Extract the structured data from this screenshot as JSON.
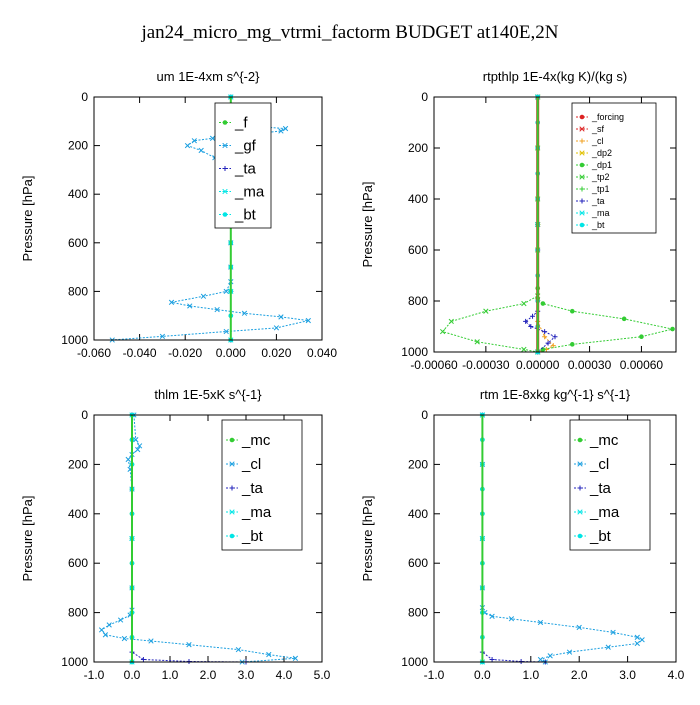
{
  "title": "jan24_micro_mg_vtrmi_factorm  BUDGET at140E,2N",
  "colors": {
    "green": "#33cc33",
    "blue": "#1a9fe0",
    "navy": "#2222bb",
    "cyan": "#00e5e5",
    "red": "#dd2222",
    "orange": "#f0a020",
    "yellow": "#e0c000",
    "frame": "#000000"
  },
  "chart_data": [
    {
      "type": "line",
      "title": "um  1E-4xm s^{-2}",
      "ylabel": "Pressure [hPa]",
      "xlim": [
        -0.06,
        0.04
      ],
      "ylim": [
        1000,
        0
      ],
      "xticks": [
        "-0.060",
        "-0.040",
        "-0.020",
        "0.000",
        "0.020",
        "0.040"
      ],
      "xtick_values": [
        -0.06,
        -0.04,
        -0.02,
        0,
        0.02,
        0.04
      ],
      "yticks": [
        "0",
        "200",
        "400",
        "600",
        "800",
        "1000"
      ],
      "legend": [
        "_f",
        "_gf",
        "_ta",
        "_ma",
        "_bt"
      ],
      "legend_placement": "top-right",
      "series": [
        {
          "name": "_f",
          "color": "green",
          "x": [
            0,
            0,
            0,
            0,
            0,
            0,
            0,
            0,
            0,
            0,
            0
          ],
          "y": [
            0,
            100,
            200,
            300,
            400,
            500,
            600,
            700,
            800,
            900,
            1000
          ]
        },
        {
          "name": "_gf",
          "color": "blue",
          "x": [
            0,
            0,
            0.002,
            0.01,
            0.024,
            0.022,
            0.012,
            0.004,
            -0.008,
            -0.016,
            -0.019,
            -0.013,
            -0.007,
            -0.004,
            -0.003,
            -0.001,
            0,
            0.001,
            0,
            0,
            0,
            0,
            -0.002,
            -0.012,
            -0.026,
            -0.018,
            -0.006,
            0.006,
            0.022,
            0.034,
            0.02,
            -0.002,
            -0.03,
            -0.052
          ],
          "y": [
            0,
            80,
            110,
            120,
            130,
            140,
            150,
            160,
            170,
            180,
            200,
            220,
            250,
            280,
            320,
            360,
            400,
            450,
            500,
            600,
            700,
            760,
            800,
            820,
            845,
            860,
            875,
            890,
            905,
            920,
            950,
            965,
            985,
            1000
          ]
        },
        {
          "name": "_ta",
          "color": "navy",
          "x": [
            0,
            0,
            0,
            0
          ],
          "y": [
            0,
            400,
            800,
            1000
          ]
        },
        {
          "name": "_ma",
          "color": "cyan",
          "x": [
            0,
            0,
            0,
            0
          ],
          "y": [
            0,
            400,
            800,
            1000
          ]
        },
        {
          "name": "_bt",
          "color": "cyan",
          "x": [
            0,
            0,
            0,
            0,
            0,
            0,
            0,
            0,
            0,
            0,
            0
          ],
          "y": [
            0,
            100,
            200,
            300,
            400,
            500,
            600,
            700,
            800,
            900,
            1000
          ]
        }
      ]
    },
    {
      "type": "line",
      "title": "rtpthlp  1E-4x(kg K)/(kg s)",
      "ylabel": "Pressure [hPa]",
      "xlim": [
        -0.0006,
        0.0008
      ],
      "ylim": [
        1000,
        0
      ],
      "xticks": [
        "-0.00060",
        "-0.00030",
        "0.00000",
        "0.00030",
        "0.00060"
      ],
      "xtick_values": [
        -0.0006,
        -0.0003,
        0,
        0.0003,
        0.0006
      ],
      "yticks": [
        "0",
        "200",
        "400",
        "600",
        "800",
        "1000"
      ],
      "legend": [
        "_forcing",
        "_sf",
        "_cl",
        "_dp2",
        "_dp1",
        "_tp2",
        "_tp1",
        "_ta",
        "_ma",
        "_bt"
      ],
      "legend_placement": "top-right",
      "series": [
        {
          "name": "_forcing",
          "color": "red",
          "x": [
            0,
            0,
            0,
            0,
            0,
            0,
            0,
            0,
            0,
            0,
            0
          ],
          "y": [
            0,
            100,
            200,
            300,
            400,
            500,
            600,
            700,
            800,
            900,
            1000
          ]
        },
        {
          "name": "_sf",
          "color": "red",
          "x": [
            0,
            0,
            0
          ],
          "y": [
            0,
            500,
            1000
          ]
        },
        {
          "name": "_cl",
          "color": "orange",
          "x": [
            0,
            0,
            0,
            4e-05,
            9e-05,
            5e-05,
            0
          ],
          "y": [
            0,
            500,
            880,
            940,
            975,
            990,
            1000
          ]
        },
        {
          "name": "_dp2",
          "color": "yellow",
          "x": [
            0,
            0,
            0
          ],
          "y": [
            0,
            500,
            1000
          ]
        },
        {
          "name": "_dp1",
          "color": "green",
          "x": [
            0,
            0,
            0,
            0,
            0,
            0,
            3e-05,
            0.0002,
            0.0005,
            0.00078,
            0.0006,
            0.0002,
            3e-05,
            0
          ],
          "y": [
            0,
            200,
            400,
            600,
            750,
            790,
            810,
            840,
            870,
            910,
            940,
            970,
            990,
            1000
          ]
        },
        {
          "name": "_tp2",
          "color": "green",
          "x": [
            0,
            0,
            0,
            0,
            0,
            -8e-05,
            -0.0003,
            -0.0005,
            -0.00055,
            -0.00035,
            -8e-05,
            0
          ],
          "y": [
            0,
            200,
            400,
            600,
            780,
            810,
            840,
            880,
            920,
            960,
            990,
            1000
          ]
        },
        {
          "name": "_tp1",
          "color": "green",
          "x": [
            0,
            0,
            0
          ],
          "y": [
            0,
            500,
            1000
          ]
        },
        {
          "name": "_ta",
          "color": "navy",
          "x": [
            0,
            0,
            0,
            -3e-05,
            -7e-05,
            -4e-05,
            4e-05,
            0.0001,
            6e-05,
            0
          ],
          "y": [
            0,
            600,
            840,
            860,
            880,
            900,
            920,
            940,
            965,
            1000
          ]
        },
        {
          "name": "_ma",
          "color": "cyan",
          "x": [
            0,
            0,
            0
          ],
          "y": [
            0,
            500,
            1000
          ]
        },
        {
          "name": "_bt",
          "color": "cyan",
          "x": [
            0,
            0,
            0,
            0,
            0,
            0,
            0,
            0,
            0,
            0,
            0
          ],
          "y": [
            0,
            100,
            200,
            300,
            400,
            500,
            600,
            700,
            800,
            900,
            1000
          ]
        }
      ]
    },
    {
      "type": "line",
      "title": "thlm  1E-5xK s^{-1}",
      "ylabel": "Pressure [hPa]",
      "xlim": [
        -1.0,
        5.0
      ],
      "ylim": [
        1000,
        0
      ],
      "xticks": [
        "-1.0",
        "0.0",
        "1.0",
        "2.0",
        "3.0",
        "4.0",
        "5.0"
      ],
      "xtick_values": [
        -1,
        0,
        1,
        2,
        3,
        4,
        5
      ],
      "yticks": [
        "0",
        "200",
        "400",
        "600",
        "800",
        "1000"
      ],
      "legend": [
        "_mc",
        "_cl",
        "_ta",
        "_ma",
        "_bt"
      ],
      "legend_placement": "top-right",
      "series": [
        {
          "name": "_mc",
          "color": "green",
          "x": [
            0,
            0,
            0,
            0,
            0,
            0,
            0,
            0,
            0,
            0,
            0
          ],
          "y": [
            0,
            100,
            200,
            300,
            400,
            500,
            600,
            700,
            800,
            900,
            1000
          ]
        },
        {
          "name": "_cl",
          "color": "blue",
          "x": [
            0.05,
            0.1,
            0.2,
            0.15,
            0.0,
            -0.1,
            -0.05,
            0,
            0,
            0,
            0,
            -0.05,
            -0.3,
            -0.6,
            -0.8,
            -0.7,
            -0.2,
            0.5,
            1.5,
            2.8,
            3.6,
            4.3,
            2.9
          ],
          "y": [
            0,
            100,
            125,
            140,
            160,
            180,
            220,
            300,
            500,
            700,
            790,
            810,
            830,
            850,
            870,
            890,
            905,
            915,
            930,
            950,
            970,
            985,
            1000
          ]
        },
        {
          "name": "_ta",
          "color": "navy",
          "x": [
            0,
            0,
            0.3,
            1.5,
            3.0
          ],
          "y": [
            0,
            960,
            990,
            998,
            1000
          ]
        },
        {
          "name": "_ma",
          "color": "cyan",
          "x": [
            0,
            0,
            0
          ],
          "y": [
            0,
            500,
            1000
          ]
        },
        {
          "name": "_bt",
          "color": "cyan",
          "x": [
            0,
            0,
            0,
            0,
            0,
            0,
            0,
            0,
            0,
            0,
            0
          ],
          "y": [
            0,
            100,
            200,
            300,
            400,
            500,
            600,
            700,
            800,
            900,
            1000
          ]
        }
      ]
    },
    {
      "type": "line",
      "title": "rtm  1E-8xkg kg^{-1} s^{-1}",
      "ylabel": "Pressure [hPa]",
      "xlim": [
        -1.0,
        4.0
      ],
      "ylim": [
        1000,
        0
      ],
      "xticks": [
        "-1.0",
        "0.0",
        "1.0",
        "2.0",
        "3.0",
        "4.0"
      ],
      "xtick_values": [
        -1,
        0,
        1,
        2,
        3,
        4
      ],
      "yticks": [
        "0",
        "200",
        "400",
        "600",
        "800",
        "1000"
      ],
      "legend": [
        "_mc",
        "_cl",
        "_ta",
        "_ma",
        "_bt"
      ],
      "legend_placement": "top-right",
      "series": [
        {
          "name": "_mc",
          "color": "green",
          "x": [
            0,
            0,
            0,
            0,
            0,
            0,
            0,
            0,
            0,
            0,
            0
          ],
          "y": [
            0,
            100,
            200,
            300,
            400,
            500,
            600,
            700,
            800,
            900,
            1000
          ]
        },
        {
          "name": "_cl",
          "color": "blue",
          "x": [
            0,
            0,
            0,
            0,
            0,
            0.05,
            0.2,
            0.6,
            1.2,
            2.0,
            2.7,
            3.2,
            3.3,
            3.2,
            2.6,
            1.8,
            1.4,
            1.2,
            1.3
          ],
          "y": [
            0,
            200,
            500,
            700,
            780,
            800,
            815,
            825,
            840,
            860,
            880,
            900,
            910,
            925,
            940,
            960,
            975,
            990,
            1000
          ]
        },
        {
          "name": "_ta",
          "color": "navy",
          "x": [
            0,
            0,
            0.2,
            0.8,
            1.3
          ],
          "y": [
            0,
            960,
            990,
            998,
            1000
          ]
        },
        {
          "name": "_ma",
          "color": "cyan",
          "x": [
            0,
            0,
            0
          ],
          "y": [
            0,
            500,
            1000
          ]
        },
        {
          "name": "_bt",
          "color": "cyan",
          "x": [
            0,
            0,
            0,
            0,
            0,
            0,
            0,
            0,
            0,
            0,
            0
          ],
          "y": [
            0,
            100,
            200,
            300,
            400,
            500,
            600,
            700,
            800,
            900,
            1000
          ]
        }
      ]
    }
  ]
}
